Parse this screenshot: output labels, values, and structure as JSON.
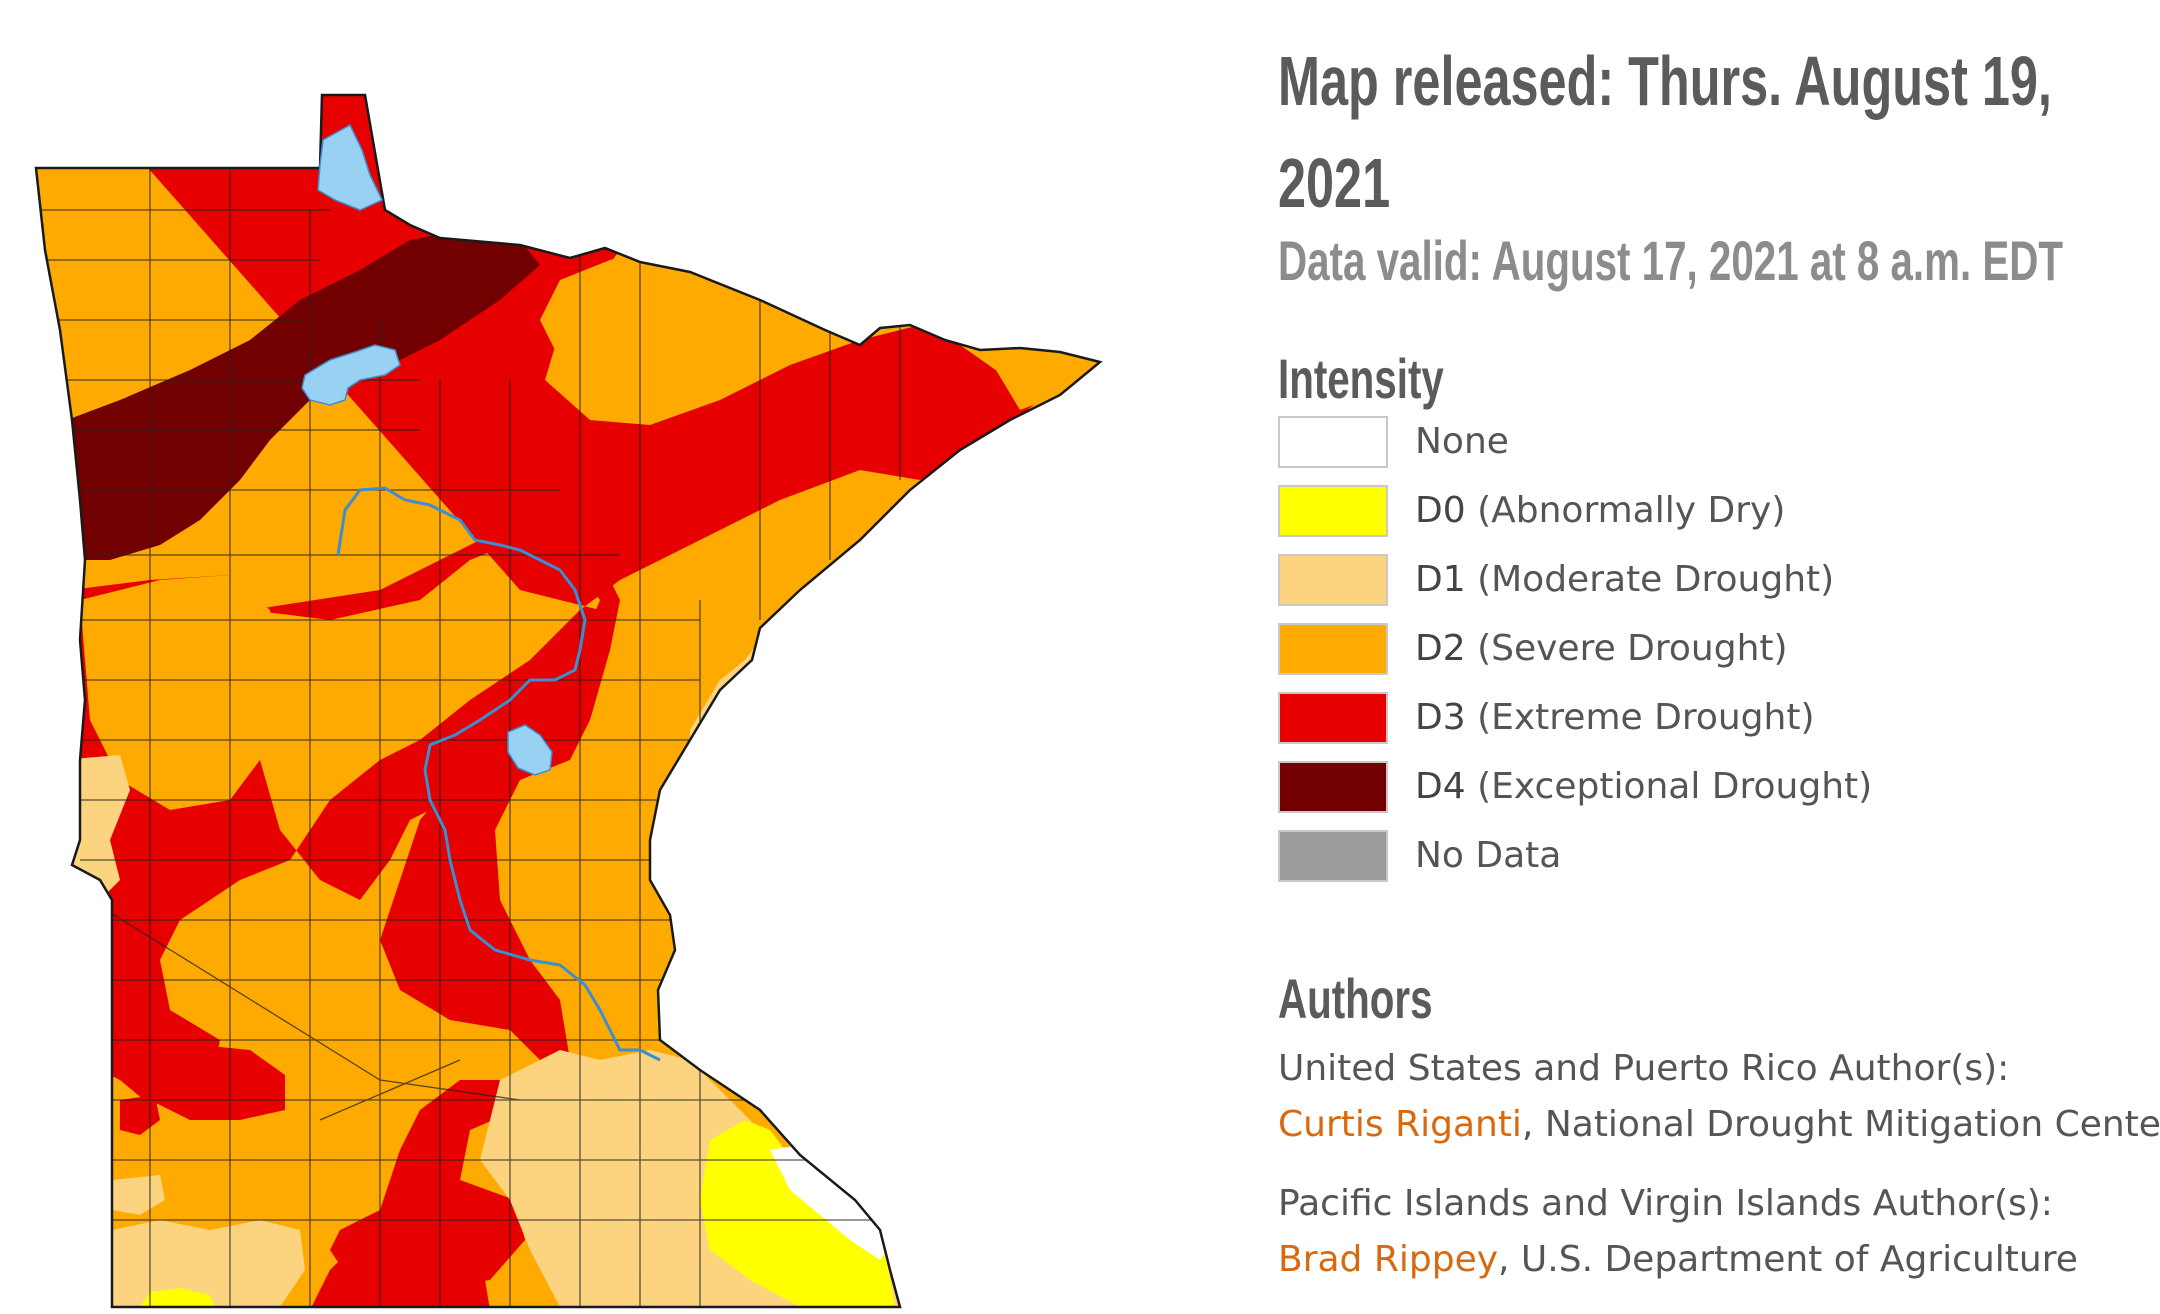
{
  "header": {
    "release_line1": "Map released: Thurs. August 19,",
    "release_line2": "2021",
    "valid": "Data valid: August 17, 2021 at 8 a.m. EDT"
  },
  "intensity": {
    "heading": "Intensity",
    "items": [
      {
        "code": "",
        "label": "None",
        "color": "#ffffff"
      },
      {
        "code": "D0",
        "label": "(Abnormally Dry)",
        "color": "#ffff00"
      },
      {
        "code": "D1",
        "label": "(Moderate Drought)",
        "color": "#fcd37f"
      },
      {
        "code": "D2",
        "label": "(Severe Drought)",
        "color": "#ffaa00"
      },
      {
        "code": "D3",
        "label": "(Extreme Drought)",
        "color": "#e60000"
      },
      {
        "code": "D4",
        "label": "(Exceptional Drought)",
        "color": "#730000"
      },
      {
        "code": "",
        "label": "No Data",
        "color": "#9b9b9b"
      }
    ]
  },
  "authors": {
    "heading": "Authors",
    "us_label": "United States and Puerto Rico Author(s):",
    "us_name": "Curtis Riganti",
    "us_org": ", National Drought Mitigation Center",
    "pi_label": "Pacific Islands and Virgin Islands Author(s):",
    "pi_name": "Brad Rippey",
    "pi_org": ", U.S. Department of Agriculture"
  },
  "map": {
    "colors": {
      "d0": "#ffff00",
      "d1": "#fcd37f",
      "d2": "#ffaa00",
      "d3": "#e60000",
      "d4": "#730000",
      "water": "#99d1f2",
      "river": "#3b8fd0"
    }
  }
}
